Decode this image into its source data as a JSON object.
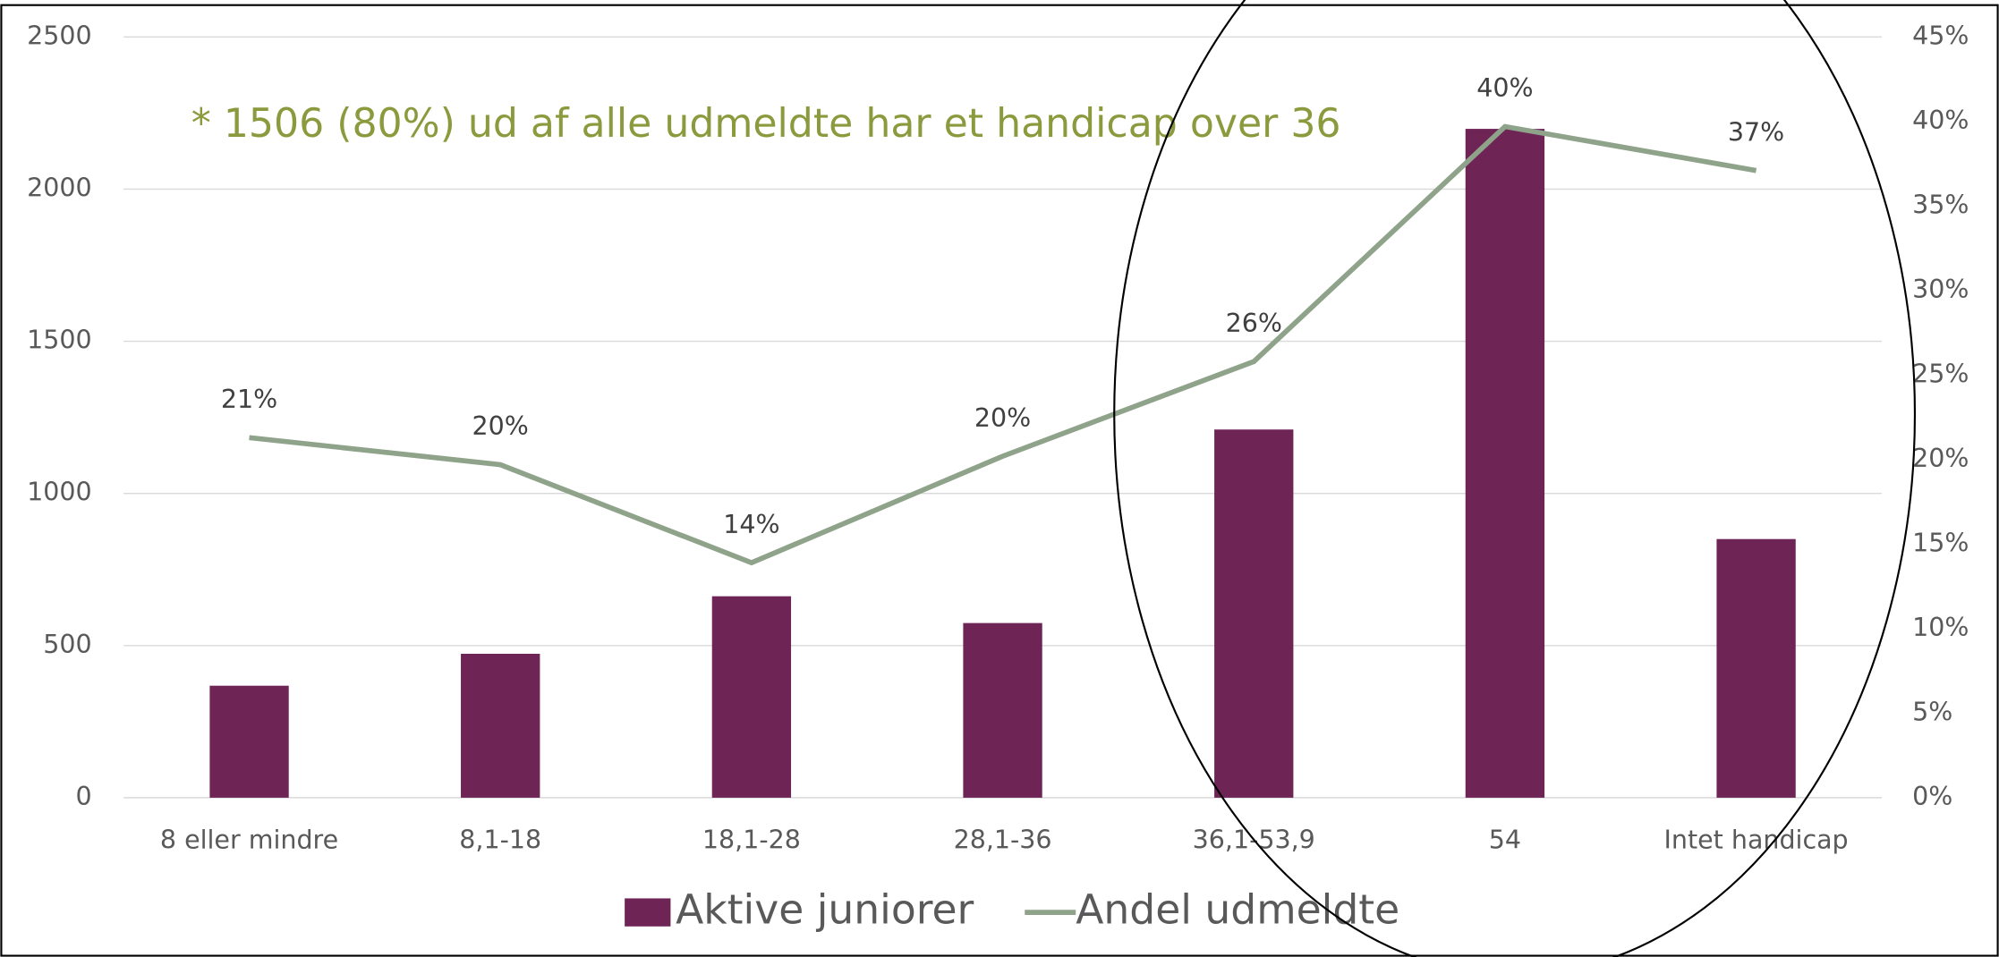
{
  "chart_data": {
    "type": "bar-line",
    "annotation": "* 1506 (80%) ud af alle udmeldte har et handicap over 36",
    "categories": [
      "8 eller mindre",
      "8,1-18",
      "18,1-28",
      "28,1-36",
      "36,1-53,9",
      "54",
      "Intet handicap"
    ],
    "series": [
      {
        "name": "Aktive juniorer",
        "type": "bar",
        "color": "#6e2556",
        "values": [
          368,
          473,
          662,
          574,
          1210,
          2198,
          850
        ]
      },
      {
        "name": "Andel udmeldte",
        "type": "line",
        "axis": "y2",
        "color": "#8fa38a",
        "values": [
          21.3,
          19.7,
          13.9,
          20.2,
          25.8,
          39.7,
          37.1
        ],
        "value_labels": [
          "21%",
          "20%",
          "14%",
          "20%",
          "26%",
          "40%",
          "37%"
        ]
      }
    ],
    "ylim": [
      0,
      2500
    ],
    "yticks": [
      0,
      500,
      1000,
      1500,
      2000,
      2500
    ],
    "y2lim": [
      0,
      45
    ],
    "y2ticks": [
      {
        "value": 0,
        "label": "0%"
      },
      {
        "value": 5,
        "label": "5%"
      },
      {
        "value": 10,
        "label": "10%"
      },
      {
        "value": 15,
        "label": "15%"
      },
      {
        "value": 20,
        "label": "20%"
      },
      {
        "value": 25,
        "label": "25%"
      },
      {
        "value": 30,
        "label": "30%"
      },
      {
        "value": 35,
        "label": "35%"
      },
      {
        "value": 40,
        "label": "40%"
      },
      {
        "value": 45,
        "label": "45%"
      }
    ],
    "grid": true,
    "legend": "bottom"
  }
}
